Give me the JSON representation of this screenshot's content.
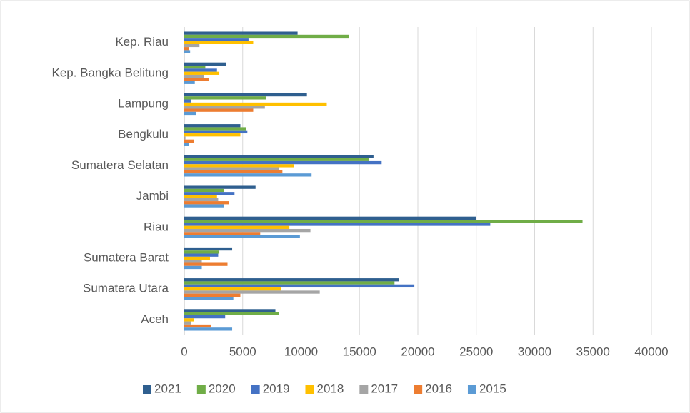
{
  "chart_data": {
    "type": "bar",
    "orientation": "horizontal",
    "categories": [
      "Aceh",
      "Sumatera Utara",
      "Sumatera Barat",
      "Riau",
      "Jambi",
      "Sumatera Selatan",
      "Bengkulu",
      "Lampung",
      "Kep. Bangka Belitung",
      "Kep. Riau"
    ],
    "series": [
      {
        "name": "2021",
        "color": "#2f5f8f",
        "values": [
          7800,
          18400,
          4100,
          25000,
          6100,
          16200,
          4800,
          10500,
          3600,
          9700
        ]
      },
      {
        "name": "2020",
        "color": "#70ad47",
        "values": [
          8100,
          18000,
          3000,
          34100,
          3400,
          15800,
          5300,
          7000,
          1800,
          14100
        ]
      },
      {
        "name": "2019",
        "color": "#4472c4",
        "values": [
          3500,
          19700,
          2900,
          26200,
          4300,
          16900,
          5400,
          600,
          2800,
          5500
        ]
      },
      {
        "name": "2018",
        "color": "#ffc000",
        "values": [
          800,
          8300,
          2200,
          9000,
          2800,
          9400,
          4800,
          12200,
          3000,
          5900
        ]
      },
      {
        "name": "2017",
        "color": "#a5a5a5",
        "values": [
          600,
          11600,
          1500,
          10800,
          2900,
          8100,
          100,
          6900,
          1700,
          1300
        ]
      },
      {
        "name": "2016",
        "color": "#ed7d31",
        "values": [
          2300,
          4800,
          3700,
          6500,
          3800,
          8400,
          800,
          5900,
          2100,
          400
        ]
      },
      {
        "name": "2015",
        "color": "#5b9bd5",
        "values": [
          4100,
          4200,
          1500,
          9900,
          3400,
          10900,
          400,
          1000,
          900,
          500
        ]
      }
    ],
    "xlim": [
      0,
      40000
    ],
    "xticks": [
      0,
      5000,
      10000,
      15000,
      20000,
      25000,
      30000,
      35000,
      40000
    ],
    "grid": true,
    "legend": "bottom"
  }
}
